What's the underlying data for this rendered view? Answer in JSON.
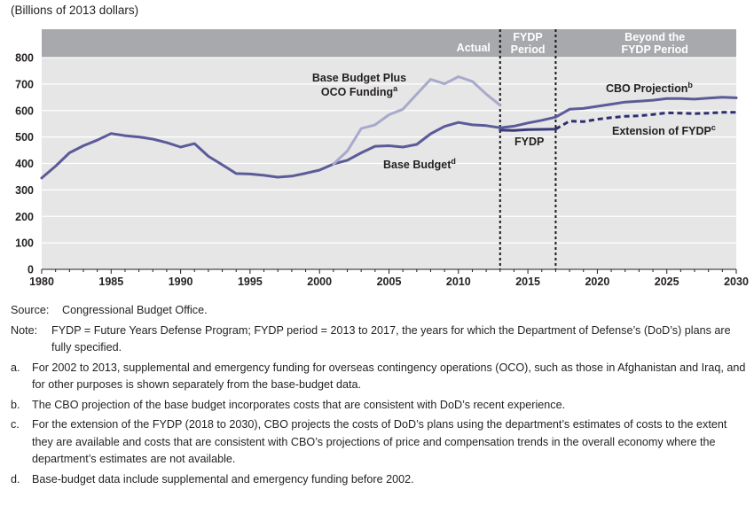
{
  "chart_data": {
    "type": "line",
    "ylabel": "(Billions of 2013 dollars)",
    "xlim": [
      1980,
      2030
    ],
    "ylim": [
      0,
      800
    ],
    "x_ticks": [
      1980,
      1985,
      1990,
      1995,
      2000,
      2005,
      2010,
      2015,
      2020,
      2025,
      2030
    ],
    "y_ticks": [
      0,
      100,
      200,
      300,
      400,
      500,
      600,
      700,
      800
    ],
    "grid": true,
    "periods": [
      {
        "label": "Actual",
        "from": 1980,
        "to": 2013
      },
      {
        "label": "FYDP Period",
        "from": 2013,
        "to": 2017
      },
      {
        "label": "Beyond the FYDP Period",
        "from": 2017,
        "to": 2030
      }
    ],
    "series": [
      {
        "name": "Base Budget",
        "superscript": "d",
        "color": "#5b5b99",
        "x": [
          1980,
          1981,
          1982,
          1983,
          1984,
          1985,
          1986,
          1987,
          1988,
          1989,
          1990,
          1991,
          1992,
          1993,
          1994,
          1995,
          1996,
          1997,
          1998,
          1999,
          2000,
          2001,
          2002,
          2003,
          2004,
          2005,
          2006,
          2007,
          2008,
          2009,
          2010,
          2011,
          2012,
          2013
        ],
        "values": [
          345,
          390,
          440,
          467,
          488,
          513,
          505,
          500,
          492,
          479,
          462,
          475,
          427,
          395,
          362,
          360,
          355,
          348,
          352,
          363,
          375,
          398,
          412,
          440,
          465,
          467,
          462,
          472,
          512,
          540,
          555,
          546,
          543,
          535
        ]
      },
      {
        "name": "Base Budget Plus OCO Funding",
        "superscript": "a",
        "color": "#a9a9cb",
        "x": [
          2001,
          2002,
          2003,
          2004,
          2005,
          2006,
          2007,
          2008,
          2009,
          2010,
          2011,
          2012,
          2013
        ],
        "values": [
          398,
          447,
          532,
          546,
          584,
          605,
          662,
          718,
          701,
          728,
          710,
          662,
          620
        ]
      },
      {
        "name": "FYDP",
        "superscript": "",
        "color": "#3a3a7a",
        "x": [
          2013,
          2014,
          2015,
          2016,
          2017
        ],
        "values": [
          526,
          525,
          528,
          529,
          530
        ]
      },
      {
        "name": "CBO Projection",
        "superscript": "b",
        "color": "#5b5b99",
        "x": [
          2013,
          2014,
          2015,
          2016,
          2017,
          2018,
          2019,
          2020,
          2021,
          2022,
          2023,
          2024,
          2025,
          2026,
          2027,
          2028,
          2029,
          2030
        ],
        "values": [
          535,
          541,
          553,
          563,
          575,
          605,
          608,
          616,
          624,
          632,
          635,
          639,
          645,
          645,
          643,
          647,
          650,
          648
        ]
      },
      {
        "name": "Extension of FYDP",
        "superscript": "c",
        "color": "#2e2e70",
        "dashed": true,
        "x": [
          2017,
          2018,
          2019,
          2020,
          2021,
          2022,
          2023,
          2024,
          2025,
          2026,
          2027,
          2028,
          2029,
          2030
        ],
        "values": [
          530,
          560,
          558,
          567,
          573,
          578,
          580,
          585,
          591,
          590,
          588,
          590,
          593,
          593
        ]
      }
    ]
  },
  "footnotes": {
    "source_key": "Source:",
    "source_text": "Congressional Budget Office.",
    "note_key": "Note:",
    "note_text": "FYDP = Future Years Defense Program; FYDP period = 2013 to 2017, the years for which the Department of Defense’s (DoD’s) plans are fully specified.",
    "a_key": "a.",
    "a_text": "For 2002 to 2013, supplemental and emergency funding for overseas contingency operations (OCO), such as those in Afghanistan and Iraq, and for other purposes is shown separately from the base-budget data.",
    "b_key": "b.",
    "b_text": "The CBO projection of the base budget incorporates costs that are consistent with DoD’s recent experience.",
    "c_key": "c.",
    "c_text": "For the extension of the FYDP (2018 to 2030), CBO projects the costs of DoD’s plans using the department’s estimates of costs to the extent they are available and costs that are consistent with CBO’s projections of price and compensation trends in the overall economy where the department’s estimates are not available.",
    "d_key": "d.",
    "d_text": "Base-budget data include supplemental and emergency funding before 2002."
  }
}
